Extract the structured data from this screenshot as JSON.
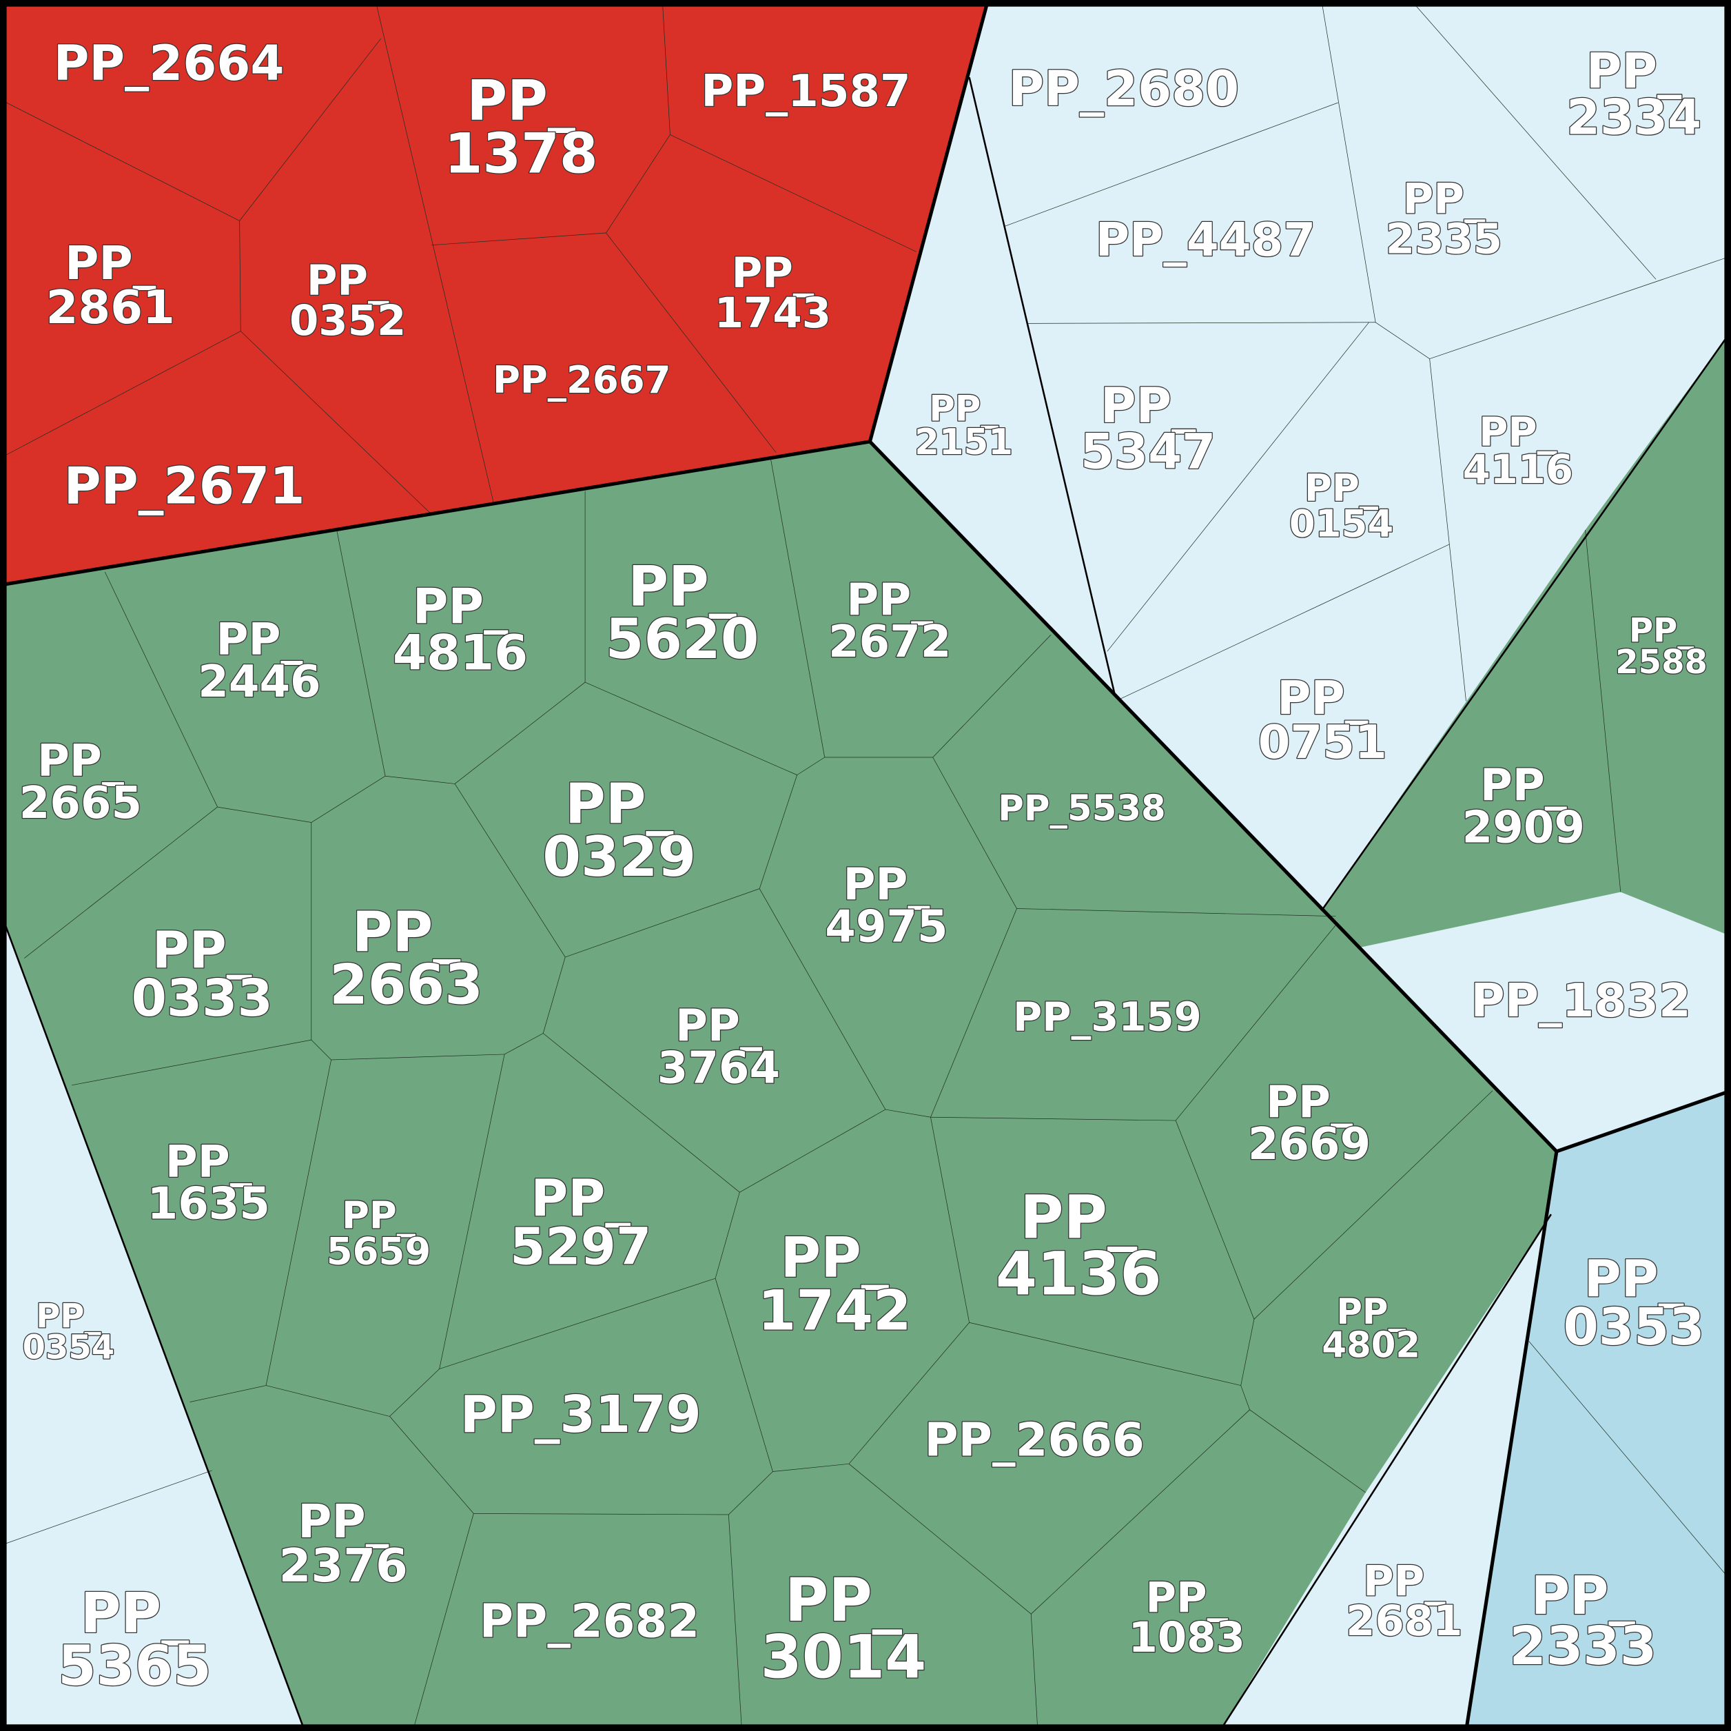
{
  "cells": [
    "PP_2664",
    "PP_1378",
    "PP_1587",
    "PP_2680",
    "PP_2334",
    "PP_2861",
    "PP_0352",
    "PP_1743",
    "PP_2667",
    "PP_4487",
    "PP_2335",
    "PP_2151",
    "PP_5347",
    "PP_0154",
    "PP_4116",
    "PP_2671",
    "PP_2446",
    "PP_4816",
    "PP_5620",
    "PP_2672",
    "PP_2588",
    "PP_0751",
    "PP_2665",
    "PP_0329",
    "PP_5538",
    "PP_4975",
    "PP_2909",
    "PP_0333",
    "PP_2663",
    "PP_3159",
    "PP_1832",
    "PP_3764",
    "PP_2669",
    "PP_1635",
    "PP_5659",
    "PP_5297",
    "PP_1742",
    "PP_4136",
    "PP_0353",
    "PP_4802",
    "PP_0354",
    "PP_3179",
    "PP_2666",
    "PP_2376",
    "PP_2682",
    "PP_3014",
    "PP_1083",
    "PP_2681",
    "PP_2333",
    "PP_5365"
  ]
}
